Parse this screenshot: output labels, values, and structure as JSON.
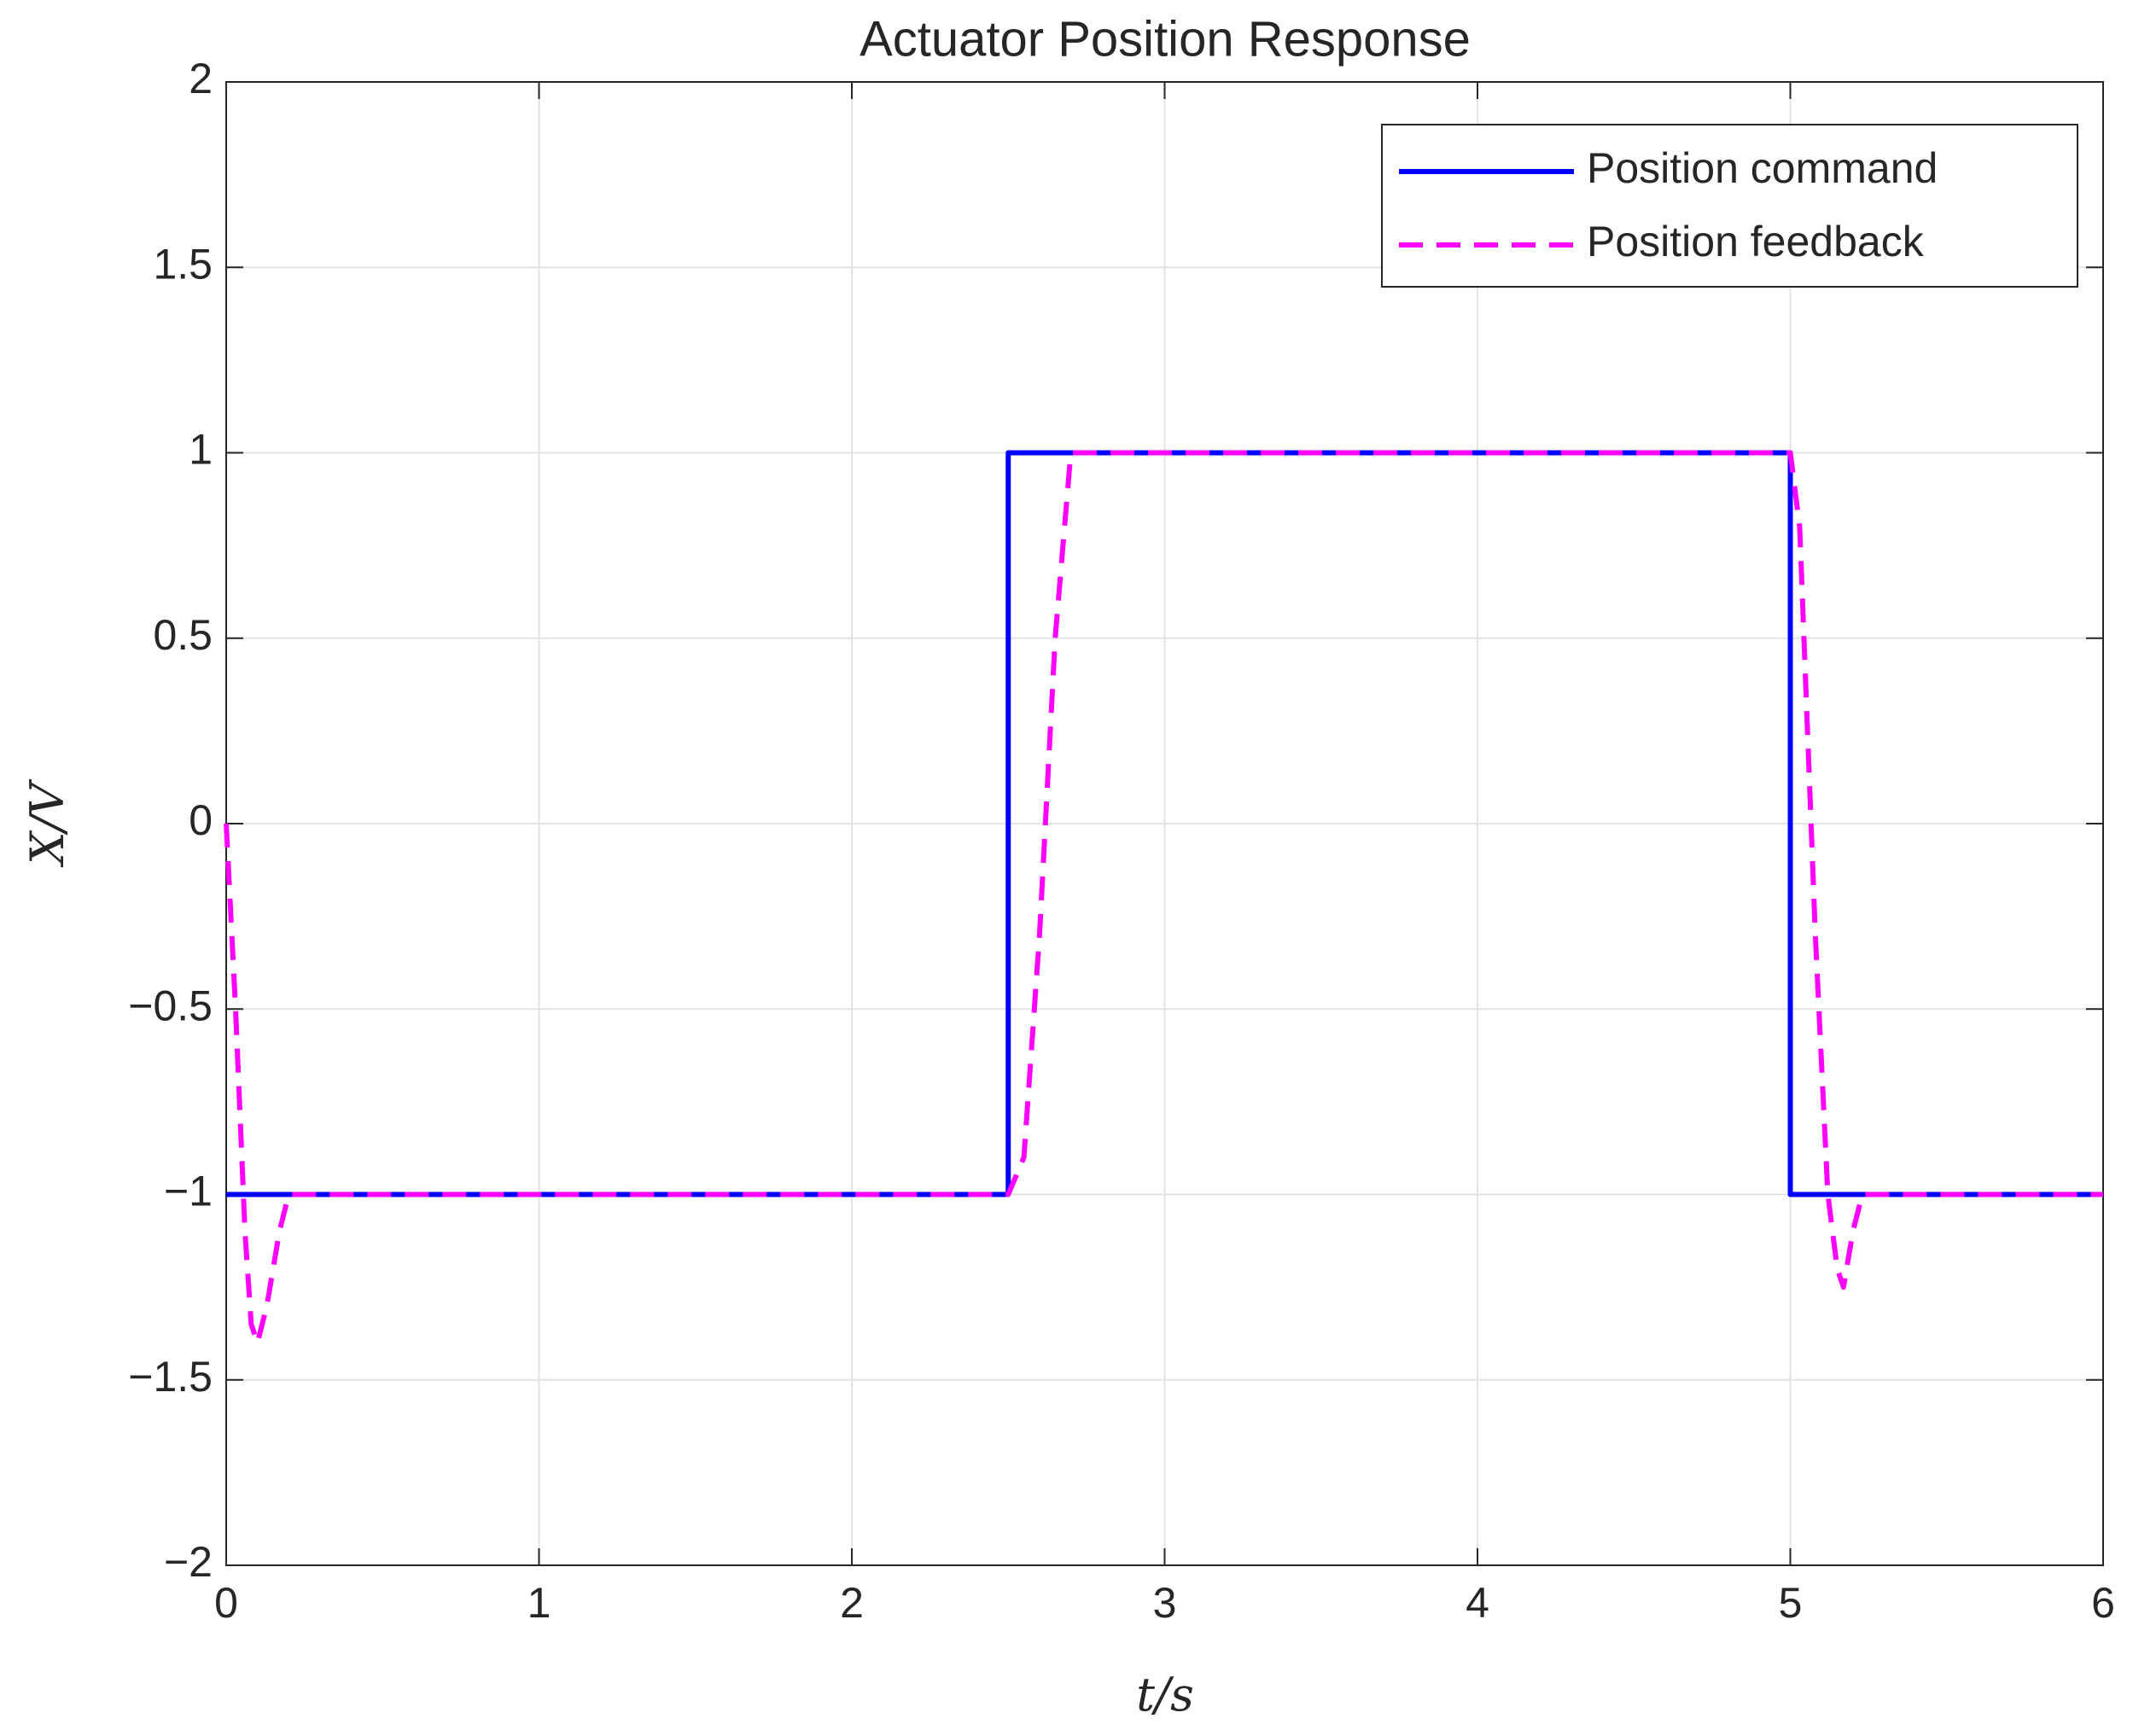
{
  "chart_data": {
    "type": "line",
    "title": "Actuator Position Response",
    "xlabel": "t/s",
    "ylabel": "X/V",
    "xlim": [
      0,
      6
    ],
    "xticks": [
      0,
      1,
      2,
      3,
      4,
      5,
      6
    ],
    "ylim": [
      -2,
      2
    ],
    "yticks": [
      {
        "value": -2,
        "label": "−2"
      },
      {
        "value": -1.5,
        "label": "−1.5"
      },
      {
        "value": -1,
        "label": "−1"
      },
      {
        "value": -0.5,
        "label": "−0.5"
      },
      0,
      0.5,
      1,
      1.5,
      2
    ],
    "grid": true,
    "legend": "upper right",
    "series": [
      {
        "name": "Position command",
        "color": "#0000ff",
        "linestyle": "solid",
        "x": [
          0,
          2.5,
          2.5,
          5,
          5,
          6
        ],
        "values": [
          -1,
          -1,
          1,
          1,
          -1,
          -1
        ]
      },
      {
        "name": "Position feedback",
        "color": "#ff00ff",
        "linestyle": "dashed",
        "x": [
          0,
          0.03,
          0.06,
          0.08,
          0.1,
          0.13,
          0.17,
          0.2,
          0.4,
          2.5,
          2.55,
          2.6,
          2.65,
          2.7,
          5.0,
          5.03,
          5.08,
          5.12,
          5.15,
          5.17,
          5.2,
          5.23,
          6
        ],
        "values": [
          0,
          -0.5,
          -1.1,
          -1.35,
          -1.4,
          -1.3,
          -1.1,
          -1.0,
          -1.0,
          -1,
          -0.9,
          -0.3,
          0.5,
          1.0,
          1.0,
          0.8,
          -0.3,
          -1.0,
          -1.2,
          -1.25,
          -1.1,
          -1.0,
          -1
        ]
      }
    ]
  }
}
